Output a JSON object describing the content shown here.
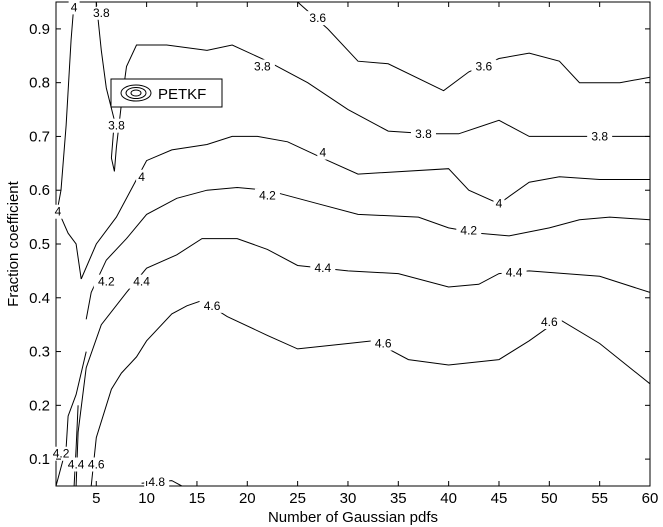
{
  "chart_data": {
    "type": "contour",
    "title": "",
    "xlabel": "Number of Gaussian pdfs",
    "ylabel": "Fraction coefficient",
    "xlim": [
      1,
      60
    ],
    "ylim": [
      0.05,
      0.95
    ],
    "xticks": [
      "5",
      "10",
      "15",
      "20",
      "25",
      "30",
      "35",
      "40",
      "45",
      "50",
      "55",
      "60"
    ],
    "xtick_values": [
      5,
      10,
      15,
      20,
      25,
      30,
      35,
      40,
      45,
      50,
      55,
      60
    ],
    "yticks": [
      "0.1",
      "0.2",
      "0.3",
      "0.4",
      "0.5",
      "0.6",
      "0.7",
      "0.8",
      "0.9"
    ],
    "ytick_values": [
      0.1,
      0.2,
      0.3,
      0.4,
      0.5,
      0.6,
      0.7,
      0.8,
      0.9
    ],
    "grid": false,
    "legend": {
      "position": "top-left",
      "entries": [
        "PETKF"
      ]
    },
    "contours": [
      {
        "level": "4",
        "points": [
          [
            1,
            0.55
          ],
          [
            1.5,
            0.6
          ],
          [
            2,
            0.72
          ],
          [
            2.5,
            0.88
          ],
          [
            2.8,
            0.95
          ]
        ],
        "labels": [
          {
            "text": "4",
            "at": [
              2.8,
              0.94
            ]
          },
          {
            "text": "4",
            "at": [
              1.2,
              0.56
            ]
          }
        ]
      },
      {
        "level": "3.8",
        "points": [
          [
            5,
            0.95
          ],
          [
            5.5,
            0.86
          ],
          [
            6,
            0.79
          ],
          [
            6.8,
            0.73
          ],
          [
            6.5,
            0.66
          ],
          [
            6.8,
            0.635
          ],
          [
            7,
            0.68
          ],
          [
            7.5,
            0.76
          ],
          [
            8,
            0.83
          ],
          [
            9,
            0.87
          ],
          [
            12,
            0.87
          ],
          [
            16,
            0.86
          ],
          [
            18.5,
            0.87
          ],
          [
            22,
            0.84
          ],
          [
            26,
            0.8
          ],
          [
            30,
            0.75
          ],
          [
            34,
            0.71
          ],
          [
            38,
            0.705
          ],
          [
            41,
            0.705
          ],
          [
            45,
            0.73
          ],
          [
            48,
            0.7
          ],
          [
            55,
            0.7
          ],
          [
            60,
            0.7
          ]
        ],
        "labels": [
          {
            "text": "3.8",
            "at": [
              5.5,
              0.93
            ]
          },
          {
            "text": "3.8",
            "at": [
              7,
              0.72
            ]
          },
          {
            "text": "3.8",
            "at": [
              21.5,
              0.83
            ]
          },
          {
            "text": "3.8",
            "at": [
              37.5,
              0.705
            ]
          },
          {
            "text": "3.8",
            "at": [
              55,
              0.7
            ]
          }
        ]
      },
      {
        "level": "3.6",
        "points": [
          [
            25,
            0.95
          ],
          [
            28,
            0.9
          ],
          [
            31,
            0.84
          ],
          [
            34,
            0.835
          ],
          [
            39.5,
            0.785
          ],
          [
            42,
            0.82
          ],
          [
            45,
            0.845
          ],
          [
            48,
            0.855
          ],
          [
            51,
            0.84
          ],
          [
            53,
            0.8
          ],
          [
            57,
            0.8
          ],
          [
            60,
            0.81
          ]
        ],
        "labels": [
          {
            "text": "3.6",
            "at": [
              27,
              0.92
            ]
          },
          {
            "text": "3.6",
            "at": [
              43.5,
              0.83
            ]
          }
        ]
      },
      {
        "level": "4",
        "points": [
          [
            3.5,
            0.435
          ],
          [
            3,
            0.5
          ],
          [
            2.2,
            0.52
          ],
          [
            1.5,
            0.55
          ]
        ],
        "labels": []
      },
      {
        "level": "4",
        "points": [
          [
            3.5,
            0.435
          ],
          [
            5,
            0.5
          ],
          [
            7,
            0.55
          ],
          [
            9,
            0.62
          ],
          [
            10,
            0.655
          ],
          [
            12.5,
            0.675
          ],
          [
            16,
            0.685
          ],
          [
            18.5,
            0.7
          ],
          [
            21,
            0.7
          ],
          [
            24,
            0.69
          ],
          [
            28,
            0.655
          ],
          [
            31,
            0.63
          ],
          [
            40,
            0.64
          ],
          [
            42,
            0.6
          ],
          [
            45,
            0.575
          ],
          [
            48,
            0.615
          ],
          [
            51,
            0.625
          ],
          [
            55,
            0.62
          ],
          [
            60,
            0.62
          ]
        ],
        "labels": [
          {
            "text": "4",
            "at": [
              9.5,
              0.625
            ]
          },
          {
            "text": "4",
            "at": [
              27.5,
              0.67
            ]
          },
          {
            "text": "4",
            "at": [
              45,
              0.575
            ]
          }
        ]
      },
      {
        "level": "4.2",
        "points": [
          [
            4,
            0.36
          ],
          [
            4.5,
            0.41
          ],
          [
            6,
            0.47
          ],
          [
            8,
            0.51
          ],
          [
            10,
            0.555
          ],
          [
            13,
            0.585
          ],
          [
            16,
            0.6
          ],
          [
            19,
            0.605
          ],
          [
            22,
            0.6
          ],
          [
            27,
            0.575
          ],
          [
            31,
            0.555
          ],
          [
            37,
            0.55
          ],
          [
            40,
            0.53
          ],
          [
            43,
            0.52
          ],
          [
            46,
            0.515
          ],
          [
            50,
            0.53
          ],
          [
            53,
            0.545
          ],
          [
            56,
            0.55
          ],
          [
            60,
            0.545
          ]
        ],
        "labels": [
          {
            "text": "4.2",
            "at": [
              6,
              0.43
            ]
          },
          {
            "text": "4.2",
            "at": [
              22,
              0.59
            ]
          },
          {
            "text": "4.2",
            "at": [
              42,
              0.525
            ]
          }
        ]
      },
      {
        "level": "4.4",
        "points": [
          [
            3,
            0.05
          ],
          [
            3.2,
            0.15
          ],
          [
            4,
            0.27
          ],
          [
            5.5,
            0.35
          ],
          [
            8,
            0.41
          ],
          [
            10,
            0.455
          ],
          [
            13,
            0.48
          ],
          [
            15.5,
            0.51
          ],
          [
            19,
            0.51
          ],
          [
            22,
            0.49
          ],
          [
            25,
            0.46
          ],
          [
            30,
            0.45
          ],
          [
            35,
            0.445
          ],
          [
            40,
            0.42
          ],
          [
            43,
            0.425
          ],
          [
            45,
            0.445
          ],
          [
            48,
            0.45
          ],
          [
            55,
            0.44
          ],
          [
            60,
            0.41
          ]
        ],
        "labels": [
          {
            "text": "4.4",
            "at": [
              9.5,
              0.43
            ]
          },
          {
            "text": "4.4",
            "at": [
              27.5,
              0.455
            ]
          },
          {
            "text": "4.4",
            "at": [
              46.5,
              0.447
            ]
          }
        ]
      },
      {
        "level": "4.2",
        "points": [
          [
            1,
            0.05
          ],
          [
            2,
            0.12
          ],
          [
            2.2,
            0.18
          ],
          [
            3,
            0.22
          ],
          [
            4,
            0.3
          ]
        ],
        "labels": [
          {
            "text": "4.2",
            "at": [
              1.5,
              0.11
            ]
          }
        ]
      },
      {
        "level": "4.4",
        "points": [
          [
            2.8,
            0.05
          ],
          [
            3,
            0.12
          ],
          [
            3.2,
            0.2
          ]
        ],
        "labels": [
          {
            "text": "4.4",
            "at": [
              3,
              0.09
            ]
          }
        ]
      },
      {
        "level": "4.6",
        "points": [
          [
            4.5,
            0.05
          ],
          [
            5,
            0.14
          ],
          [
            6.5,
            0.23
          ],
          [
            7.5,
            0.26
          ],
          [
            9,
            0.29
          ],
          [
            10,
            0.32
          ],
          [
            12.5,
            0.37
          ],
          [
            14,
            0.385
          ],
          [
            15.5,
            0.395
          ],
          [
            18,
            0.365
          ],
          [
            22,
            0.33
          ],
          [
            25,
            0.305
          ],
          [
            30,
            0.315
          ],
          [
            32.5,
            0.32
          ],
          [
            36,
            0.285
          ],
          [
            40,
            0.275
          ],
          [
            45,
            0.285
          ],
          [
            48,
            0.32
          ],
          [
            51,
            0.36
          ],
          [
            55,
            0.315
          ],
          [
            60,
            0.24
          ]
        ],
        "labels": [
          {
            "text": "4.6",
            "at": [
              5,
              0.09
            ]
          },
          {
            "text": "4.6",
            "at": [
              16.5,
              0.385
            ]
          },
          {
            "text": "4.6",
            "at": [
              33.5,
              0.315
            ]
          },
          {
            "text": "4.6",
            "at": [
              50,
              0.355
            ]
          }
        ]
      },
      {
        "level": "4.8",
        "points": [
          [
            9.5,
            0.055
          ],
          [
            12.5,
            0.06
          ],
          [
            13.5,
            0.05
          ]
        ],
        "labels": [
          {
            "text": "4.8",
            "at": [
              11,
              0.057
            ]
          }
        ]
      }
    ]
  }
}
